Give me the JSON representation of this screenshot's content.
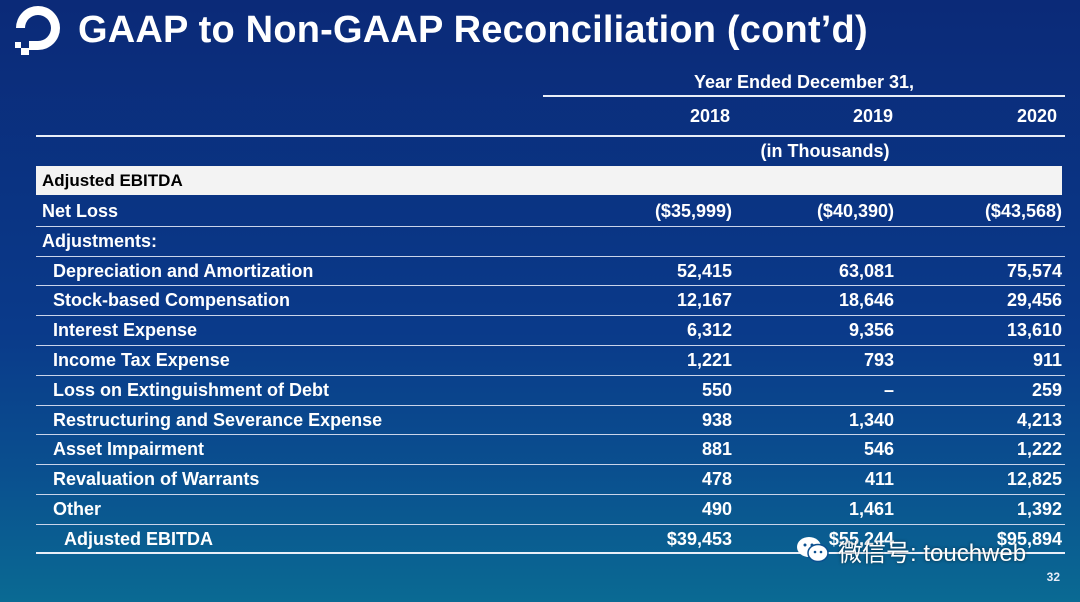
{
  "title": "GAAP to Non-GAAP Reconciliation (cont’d)",
  "table": {
    "period_header": "Year Ended December 31,",
    "columns": [
      "2018",
      "2019",
      "2020"
    ],
    "units": "(in Thousands)",
    "section_title": "Adjusted EBITDA",
    "rows": [
      {
        "label": "Net Loss",
        "v2018": "($35,999)",
        "v2019": "($40,390)",
        "v2020": "($43,568)"
      },
      {
        "label": "Adjustments:",
        "v2018": "",
        "v2019": "",
        "v2020": ""
      },
      {
        "label": "Depreciation and Amortization",
        "v2018": "52,415",
        "v2019": "63,081",
        "v2020": "75,574"
      },
      {
        "label": "Stock-based Compensation",
        "v2018": "12,167",
        "v2019": "18,646",
        "v2020": "29,456"
      },
      {
        "label": "Interest Expense",
        "v2018": "6,312",
        "v2019": "9,356",
        "v2020": "13,610"
      },
      {
        "label": "Income Tax Expense",
        "v2018": "1,221",
        "v2019": "793",
        "v2020": "911"
      },
      {
        "label": "Loss on Extinguishment of Debt",
        "v2018": "550",
        "v2019": "–",
        "v2020": "259"
      },
      {
        "label": "Restructuring and Severance Expense",
        "v2018": "938",
        "v2019": "1,340",
        "v2020": "4,213"
      },
      {
        "label": "Asset Impairment",
        "v2018": "881",
        "v2019": "546",
        "v2020": "1,222"
      },
      {
        "label": "Revaluation of Warrants",
        "v2018": "478",
        "v2019": "411",
        "v2020": "12,825"
      },
      {
        "label": "Other",
        "v2018": "490",
        "v2019": "1,461",
        "v2020": "1,392"
      },
      {
        "label": "Adjusted EBITDA",
        "v2018": "$39,453",
        "v2019": "$55,244",
        "v2020": "$95,894"
      }
    ]
  },
  "watermark": "微信号: touchweb",
  "page_number": "32",
  "colors": {
    "background_top": "#0b2a78",
    "background_bottom": "#0a6a93",
    "section_bar": "#f3f3f3",
    "rule": "#e8eef8"
  }
}
